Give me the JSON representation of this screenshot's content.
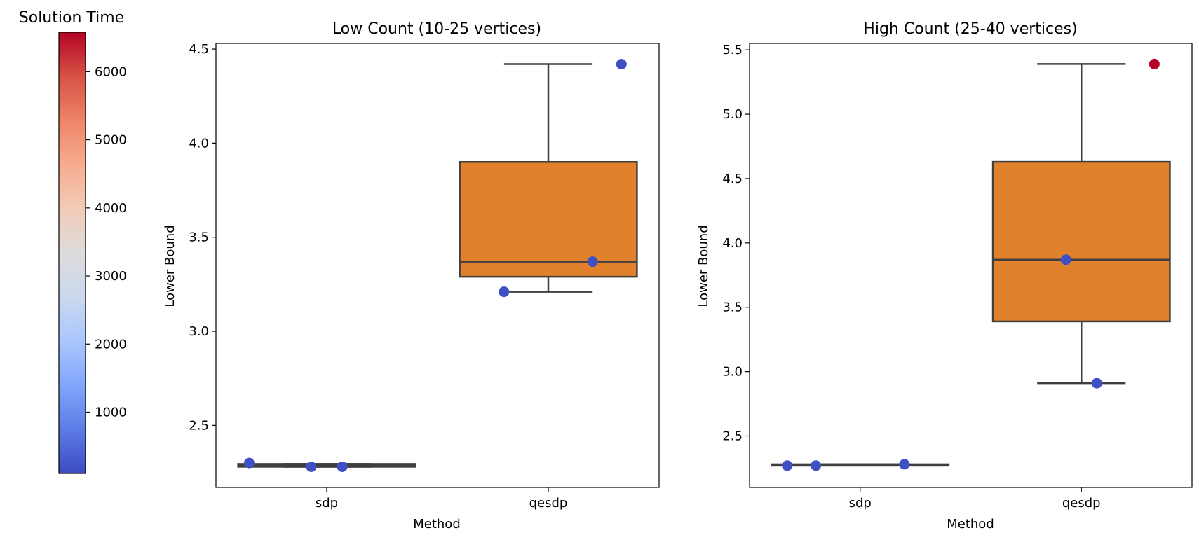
{
  "colorbar": {
    "title": "Solution Time",
    "min": 100,
    "max": 6580,
    "ticks": [
      1000,
      2000,
      3000,
      4000,
      5000,
      6000
    ],
    "colormap": "coolwarm",
    "colormap_stops": [
      "#3b4cc0",
      "#5d7ce6",
      "#82a6fb",
      "#aac7fd",
      "#cbd8ee",
      "#dddcdc",
      "#f2cbb7",
      "#f7ac8e",
      "#ee8468",
      "#d65244",
      "#b40426"
    ]
  },
  "colors": {
    "box_fill": "#e1812c",
    "box_line": "#3f3f3f"
  },
  "chart_data": [
    {
      "type": "box",
      "title": "Low Count (10-25 vertices)",
      "xlabel": "Method",
      "ylabel": "Lower Bound",
      "categories": [
        "sdp",
        "qesdp"
      ],
      "ylim": [
        2.17,
        4.53
      ],
      "yticks": [
        "2.5",
        "3.0",
        "3.5",
        "4.0",
        "4.5"
      ],
      "boxes": [
        {
          "category": "sdp",
          "whisker_low": 2.28,
          "q1": 2.28,
          "median": 2.285,
          "q3": 2.295,
          "whisker_high": 2.295,
          "fill": "#3f3f3f"
        },
        {
          "category": "qesdp",
          "whisker_low": 3.21,
          "q1": 3.29,
          "median": 3.37,
          "q3": 3.9,
          "whisker_high": 4.42,
          "fill": "#e1812c"
        }
      ],
      "points": [
        {
          "category": "sdp",
          "offset": -0.35,
          "y": 2.3,
          "time": 150
        },
        {
          "category": "sdp",
          "offset": -0.07,
          "y": 2.28,
          "time": 150
        },
        {
          "category": "sdp",
          "offset": 0.07,
          "y": 2.28,
          "time": 150
        },
        {
          "category": "qesdp",
          "offset": -0.2,
          "y": 3.21,
          "time": 150
        },
        {
          "category": "qesdp",
          "offset": 0.2,
          "y": 3.37,
          "time": 150
        },
        {
          "category": "qesdp",
          "offset": 0.33,
          "y": 4.42,
          "time": 150
        }
      ]
    },
    {
      "type": "box",
      "title": "High Count (25-40 vertices)",
      "xlabel": "Method",
      "ylabel": "Lower Bound",
      "categories": [
        "sdp",
        "qesdp"
      ],
      "ylim": [
        2.1,
        5.55
      ],
      "yticks": [
        "2.5",
        "3.0",
        "3.5",
        "4.0",
        "4.5",
        "5.0",
        "5.5"
      ],
      "boxes": [
        {
          "category": "sdp",
          "whisker_low": 2.27,
          "q1": 2.27,
          "median": 2.27,
          "q3": 2.28,
          "whisker_high": 2.28,
          "fill": "#3f3f3f"
        },
        {
          "category": "qesdp",
          "whisker_low": 2.91,
          "q1": 3.39,
          "median": 3.87,
          "q3": 4.63,
          "whisker_high": 5.39,
          "fill": "#e1812c"
        }
      ],
      "points": [
        {
          "category": "sdp",
          "offset": -0.33,
          "y": 2.27,
          "time": 150
        },
        {
          "category": "sdp",
          "offset": -0.2,
          "y": 2.27,
          "time": 150
        },
        {
          "category": "sdp",
          "offset": 0.2,
          "y": 2.28,
          "time": 150
        },
        {
          "category": "qesdp",
          "offset": -0.07,
          "y": 3.87,
          "time": 150
        },
        {
          "category": "qesdp",
          "offset": 0.07,
          "y": 2.91,
          "time": 150
        },
        {
          "category": "qesdp",
          "offset": 0.33,
          "y": 5.39,
          "time": 6580
        }
      ]
    }
  ]
}
